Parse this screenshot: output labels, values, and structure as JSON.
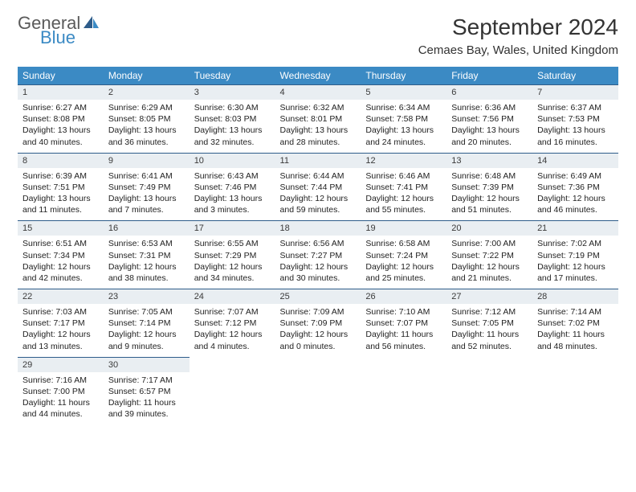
{
  "logo": {
    "line1": "General",
    "line2": "Blue"
  },
  "title": "September 2024",
  "location": "Cemaes Bay, Wales, United Kingdom",
  "colors": {
    "header_bg": "#3b8ac4",
    "header_text": "#ffffff",
    "daynum_bg": "#e9eef2",
    "daynum_border": "#2e5c8a",
    "body_text": "#222222",
    "logo_gray": "#5a5a5a",
    "logo_blue": "#3b8ac4"
  },
  "typography": {
    "title_fontsize": 28,
    "location_fontsize": 15,
    "dayheader_fontsize": 12,
    "daynum_fontsize": 11,
    "dayinfo_fontsize": 10.5
  },
  "day_headers": [
    "Sunday",
    "Monday",
    "Tuesday",
    "Wednesday",
    "Thursday",
    "Friday",
    "Saturday"
  ],
  "weeks": [
    [
      {
        "num": "1",
        "sunrise": "Sunrise: 6:27 AM",
        "sunset": "Sunset: 8:08 PM",
        "daylight1": "Daylight: 13 hours",
        "daylight2": "and 40 minutes."
      },
      {
        "num": "2",
        "sunrise": "Sunrise: 6:29 AM",
        "sunset": "Sunset: 8:05 PM",
        "daylight1": "Daylight: 13 hours",
        "daylight2": "and 36 minutes."
      },
      {
        "num": "3",
        "sunrise": "Sunrise: 6:30 AM",
        "sunset": "Sunset: 8:03 PM",
        "daylight1": "Daylight: 13 hours",
        "daylight2": "and 32 minutes."
      },
      {
        "num": "4",
        "sunrise": "Sunrise: 6:32 AM",
        "sunset": "Sunset: 8:01 PM",
        "daylight1": "Daylight: 13 hours",
        "daylight2": "and 28 minutes."
      },
      {
        "num": "5",
        "sunrise": "Sunrise: 6:34 AM",
        "sunset": "Sunset: 7:58 PM",
        "daylight1": "Daylight: 13 hours",
        "daylight2": "and 24 minutes."
      },
      {
        "num": "6",
        "sunrise": "Sunrise: 6:36 AM",
        "sunset": "Sunset: 7:56 PM",
        "daylight1": "Daylight: 13 hours",
        "daylight2": "and 20 minutes."
      },
      {
        "num": "7",
        "sunrise": "Sunrise: 6:37 AM",
        "sunset": "Sunset: 7:53 PM",
        "daylight1": "Daylight: 13 hours",
        "daylight2": "and 16 minutes."
      }
    ],
    [
      {
        "num": "8",
        "sunrise": "Sunrise: 6:39 AM",
        "sunset": "Sunset: 7:51 PM",
        "daylight1": "Daylight: 13 hours",
        "daylight2": "and 11 minutes."
      },
      {
        "num": "9",
        "sunrise": "Sunrise: 6:41 AM",
        "sunset": "Sunset: 7:49 PM",
        "daylight1": "Daylight: 13 hours",
        "daylight2": "and 7 minutes."
      },
      {
        "num": "10",
        "sunrise": "Sunrise: 6:43 AM",
        "sunset": "Sunset: 7:46 PM",
        "daylight1": "Daylight: 13 hours",
        "daylight2": "and 3 minutes."
      },
      {
        "num": "11",
        "sunrise": "Sunrise: 6:44 AM",
        "sunset": "Sunset: 7:44 PM",
        "daylight1": "Daylight: 12 hours",
        "daylight2": "and 59 minutes."
      },
      {
        "num": "12",
        "sunrise": "Sunrise: 6:46 AM",
        "sunset": "Sunset: 7:41 PM",
        "daylight1": "Daylight: 12 hours",
        "daylight2": "and 55 minutes."
      },
      {
        "num": "13",
        "sunrise": "Sunrise: 6:48 AM",
        "sunset": "Sunset: 7:39 PM",
        "daylight1": "Daylight: 12 hours",
        "daylight2": "and 51 minutes."
      },
      {
        "num": "14",
        "sunrise": "Sunrise: 6:49 AM",
        "sunset": "Sunset: 7:36 PM",
        "daylight1": "Daylight: 12 hours",
        "daylight2": "and 46 minutes."
      }
    ],
    [
      {
        "num": "15",
        "sunrise": "Sunrise: 6:51 AM",
        "sunset": "Sunset: 7:34 PM",
        "daylight1": "Daylight: 12 hours",
        "daylight2": "and 42 minutes."
      },
      {
        "num": "16",
        "sunrise": "Sunrise: 6:53 AM",
        "sunset": "Sunset: 7:31 PM",
        "daylight1": "Daylight: 12 hours",
        "daylight2": "and 38 minutes."
      },
      {
        "num": "17",
        "sunrise": "Sunrise: 6:55 AM",
        "sunset": "Sunset: 7:29 PM",
        "daylight1": "Daylight: 12 hours",
        "daylight2": "and 34 minutes."
      },
      {
        "num": "18",
        "sunrise": "Sunrise: 6:56 AM",
        "sunset": "Sunset: 7:27 PM",
        "daylight1": "Daylight: 12 hours",
        "daylight2": "and 30 minutes."
      },
      {
        "num": "19",
        "sunrise": "Sunrise: 6:58 AM",
        "sunset": "Sunset: 7:24 PM",
        "daylight1": "Daylight: 12 hours",
        "daylight2": "and 25 minutes."
      },
      {
        "num": "20",
        "sunrise": "Sunrise: 7:00 AM",
        "sunset": "Sunset: 7:22 PM",
        "daylight1": "Daylight: 12 hours",
        "daylight2": "and 21 minutes."
      },
      {
        "num": "21",
        "sunrise": "Sunrise: 7:02 AM",
        "sunset": "Sunset: 7:19 PM",
        "daylight1": "Daylight: 12 hours",
        "daylight2": "and 17 minutes."
      }
    ],
    [
      {
        "num": "22",
        "sunrise": "Sunrise: 7:03 AM",
        "sunset": "Sunset: 7:17 PM",
        "daylight1": "Daylight: 12 hours",
        "daylight2": "and 13 minutes."
      },
      {
        "num": "23",
        "sunrise": "Sunrise: 7:05 AM",
        "sunset": "Sunset: 7:14 PM",
        "daylight1": "Daylight: 12 hours",
        "daylight2": "and 9 minutes."
      },
      {
        "num": "24",
        "sunrise": "Sunrise: 7:07 AM",
        "sunset": "Sunset: 7:12 PM",
        "daylight1": "Daylight: 12 hours",
        "daylight2": "and 4 minutes."
      },
      {
        "num": "25",
        "sunrise": "Sunrise: 7:09 AM",
        "sunset": "Sunset: 7:09 PM",
        "daylight1": "Daylight: 12 hours",
        "daylight2": "and 0 minutes."
      },
      {
        "num": "26",
        "sunrise": "Sunrise: 7:10 AM",
        "sunset": "Sunset: 7:07 PM",
        "daylight1": "Daylight: 11 hours",
        "daylight2": "and 56 minutes."
      },
      {
        "num": "27",
        "sunrise": "Sunrise: 7:12 AM",
        "sunset": "Sunset: 7:05 PM",
        "daylight1": "Daylight: 11 hours",
        "daylight2": "and 52 minutes."
      },
      {
        "num": "28",
        "sunrise": "Sunrise: 7:14 AM",
        "sunset": "Sunset: 7:02 PM",
        "daylight1": "Daylight: 11 hours",
        "daylight2": "and 48 minutes."
      }
    ],
    [
      {
        "num": "29",
        "sunrise": "Sunrise: 7:16 AM",
        "sunset": "Sunset: 7:00 PM",
        "daylight1": "Daylight: 11 hours",
        "daylight2": "and 44 minutes."
      },
      {
        "num": "30",
        "sunrise": "Sunrise: 7:17 AM",
        "sunset": "Sunset: 6:57 PM",
        "daylight1": "Daylight: 11 hours",
        "daylight2": "and 39 minutes."
      },
      null,
      null,
      null,
      null,
      null
    ]
  ]
}
